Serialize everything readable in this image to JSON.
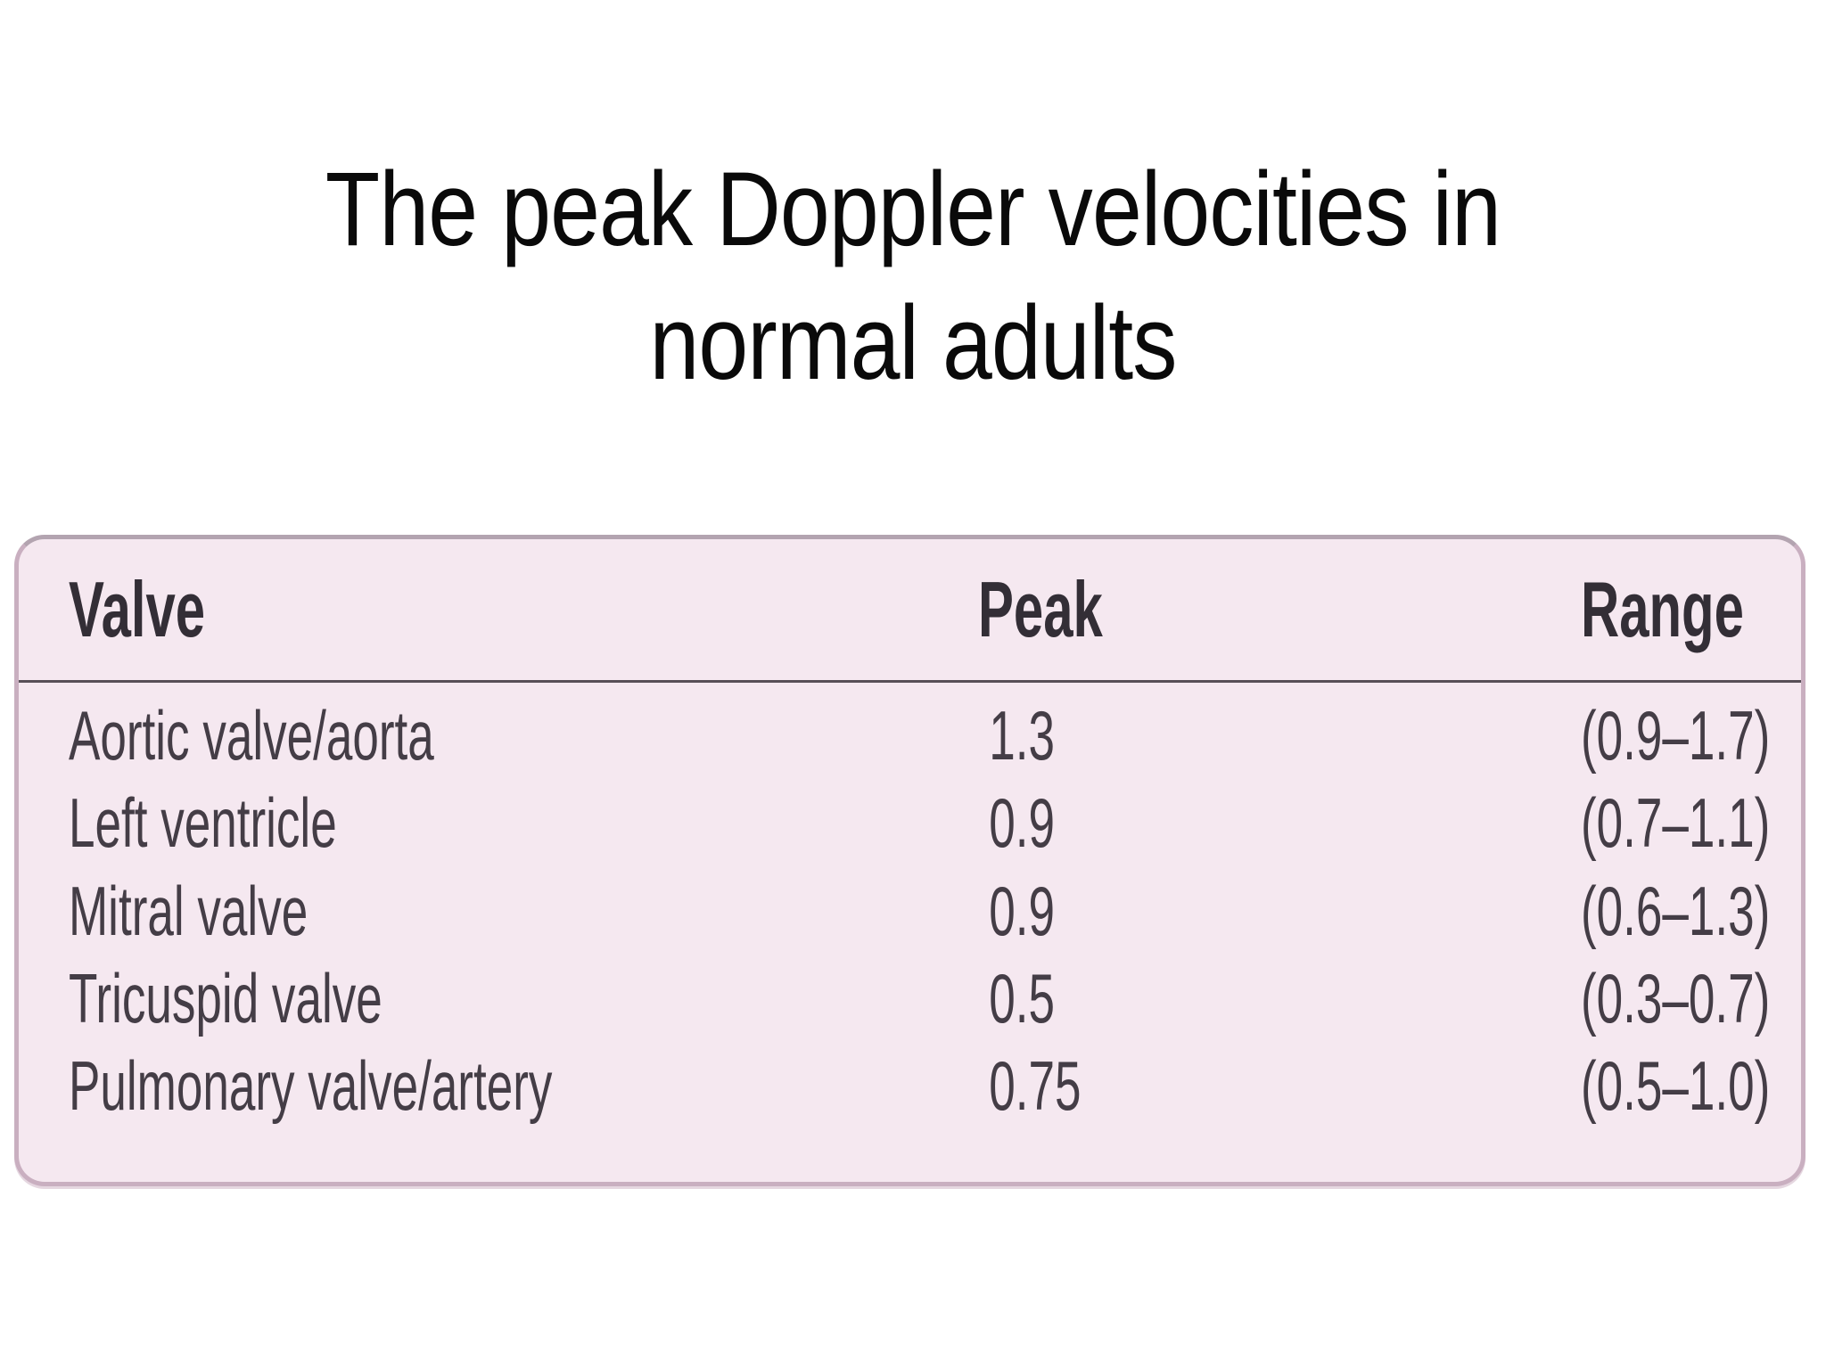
{
  "slide": {
    "title_line1": "The peak Doppler velocities in",
    "title_line2": "normal adults"
  },
  "table": {
    "headers": {
      "valve": "Valve",
      "peak": "Peak",
      "range": "Range"
    },
    "rows": [
      {
        "valve": "Aortic valve/aorta",
        "peak": "1.3",
        "range": "(0.9–1.7)"
      },
      {
        "valve": "Left ventricle",
        "peak": "0.9",
        "range": "(0.7–1.1)"
      },
      {
        "valve": "Mitral valve",
        "peak": "0.9",
        "range": "(0.6–1.3)"
      },
      {
        "valve": "Tricuspid valve",
        "peak": "0.5",
        "range": "(0.3–0.7)"
      },
      {
        "valve": "Pulmonary valve/artery",
        "peak": "0.75",
        "range": "(0.5–1.0)"
      }
    ]
  },
  "colors": {
    "slide_bg": "#ffffff",
    "title_text": "#0a0a0a",
    "table_bg": "#f5e8f0",
    "table_border": "#c9afc0",
    "table_border_top": "#b3a4b0",
    "separator": "#584f57",
    "header_text": "#332e36",
    "row_text": "#443d46"
  }
}
